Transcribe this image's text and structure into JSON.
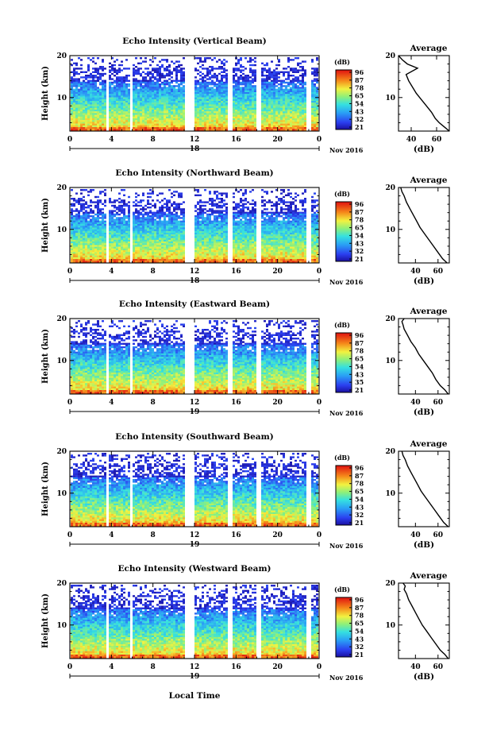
{
  "chart_data": [
    {
      "type": "heatmap",
      "title": "Echo Intensity (Vertical Beam)",
      "ylabel": "Height (km)",
      "x_ticks": [
        "0",
        "4",
        "8",
        "12",
        "16",
        "20",
        "0"
      ],
      "xlim": [
        0,
        24
      ],
      "y_ticks": [
        "20",
        "10"
      ],
      "ylim": [
        2,
        20
      ],
      "date_center": "18",
      "date_right": "Nov 2016",
      "colorbar": {
        "label": "(dB)",
        "ticks": [
          "96",
          "87",
          "78",
          "65",
          "54",
          "43",
          "32",
          "21"
        ]
      },
      "data_gaps_hours": [
        [
          3.3,
          3.7
        ],
        [
          5.7,
          6.0
        ],
        [
          11.0,
          11.8
        ],
        [
          15.0,
          15.6
        ],
        [
          17.9,
          18.2
        ],
        [
          22.6,
          23.1
        ]
      ],
      "profile": {
        "title": "Average",
        "xlabel": "(dB)",
        "x_ticks": [
          "40",
          "60"
        ],
        "xlim": [
          30,
          70
        ],
        "y_ticks": [
          "20",
          "10"
        ],
        "ylim": [
          2,
          20
        ],
        "x": [
          70,
          66,
          62,
          59,
          56,
          52,
          48,
          44,
          41,
          38,
          36,
          45,
          37,
          33,
          30
        ],
        "y": [
          2,
          3,
          4,
          5,
          6.5,
          8,
          9.5,
          11,
          12.5,
          14,
          15.5,
          17,
          18,
          19,
          20
        ]
      }
    },
    {
      "type": "heatmap",
      "title": "Echo Intensity (Northward Beam)",
      "ylabel": "Height (km)",
      "x_ticks": [
        "0",
        "4",
        "8",
        "12",
        "16",
        "20",
        "0"
      ],
      "xlim": [
        0,
        24
      ],
      "y_ticks": [
        "20",
        "10"
      ],
      "ylim": [
        2,
        20
      ],
      "date_center": "18",
      "date_right": "Nov 2016",
      "colorbar": {
        "label": "(dB)",
        "ticks": [
          "96",
          "87",
          "78",
          "65",
          "54",
          "43",
          "32",
          "21"
        ]
      },
      "data_gaps_hours": [
        [
          3.3,
          3.7
        ],
        [
          5.7,
          6.0
        ],
        [
          11.0,
          11.8
        ],
        [
          15.0,
          15.6
        ],
        [
          17.9,
          18.2
        ],
        [
          22.6,
          23.1
        ]
      ],
      "profile": {
        "title": "Average",
        "xlabel": "(dB)",
        "x_ticks": [
          "40",
          "60"
        ],
        "xlim": [
          25,
          70
        ],
        "y_ticks": [
          "20",
          "10"
        ],
        "ylim": [
          2,
          20
        ],
        "x": [
          68,
          64,
          60,
          56,
          52,
          48,
          44,
          41,
          38,
          35,
          32,
          30,
          28,
          27
        ],
        "y": [
          2,
          3,
          4.5,
          6,
          7.5,
          9,
          10.5,
          12,
          13.5,
          15,
          16.5,
          18,
          19,
          20
        ]
      }
    },
    {
      "type": "heatmap",
      "title": "Echo Intensity (Eastward Beam)",
      "ylabel": "Height (km)",
      "x_ticks": [
        "0",
        "4",
        "8",
        "12",
        "16",
        "20",
        "0"
      ],
      "xlim": [
        0,
        24
      ],
      "y_ticks": [
        "20",
        "10"
      ],
      "ylim": [
        2,
        20
      ],
      "date_center": "19",
      "date_right": "Nov 2016",
      "colorbar": {
        "label": "(dB)",
        "ticks": [
          "96",
          "87",
          "78",
          "65",
          "54",
          "43",
          "35",
          "21"
        ]
      },
      "data_gaps_hours": [
        [
          3.3,
          3.7
        ],
        [
          5.7,
          6.0
        ],
        [
          11.0,
          11.8
        ],
        [
          15.0,
          15.6
        ],
        [
          17.9,
          18.2
        ],
        [
          22.6,
          23.1
        ]
      ],
      "profile": {
        "title": "Average",
        "xlabel": "(dB)",
        "x_ticks": [
          "40",
          "60"
        ],
        "xlim": [
          25,
          70
        ],
        "y_ticks": [
          "20",
          "10"
        ],
        "ylim": [
          2,
          20
        ],
        "x": [
          69,
          66,
          62,
          58,
          55,
          51,
          47,
          43,
          40,
          36,
          33,
          30,
          29,
          28,
          30
        ],
        "y": [
          2,
          3,
          4,
          5.5,
          7,
          8.5,
          10,
          11.5,
          13,
          14.5,
          16,
          17.5,
          18.5,
          19.3,
          20
        ]
      }
    },
    {
      "type": "heatmap",
      "title": "Echo Intensity (Southward Beam)",
      "ylabel": "Height (km)",
      "x_ticks": [
        "0",
        "4",
        "8",
        "12",
        "16",
        "20",
        "0"
      ],
      "xlim": [
        0,
        24
      ],
      "y_ticks": [
        "20",
        "10"
      ],
      "ylim": [
        2,
        20
      ],
      "date_center": "19",
      "date_right": "Nov 2016",
      "colorbar": {
        "label": "(dB)",
        "ticks": [
          "96",
          "87",
          "78",
          "65",
          "54",
          "43",
          "32",
          "21"
        ]
      },
      "data_gaps_hours": [
        [
          3.3,
          3.7
        ],
        [
          5.7,
          6.0
        ],
        [
          11.0,
          11.8
        ],
        [
          15.0,
          15.6
        ],
        [
          17.9,
          18.2
        ],
        [
          22.6,
          23.1
        ]
      ],
      "profile": {
        "title": "Average",
        "xlabel": "(dB)",
        "x_ticks": [
          "40",
          "60"
        ],
        "xlim": [
          25,
          70
        ],
        "y_ticks": [
          "20",
          "10"
        ],
        "ylim": [
          2,
          20
        ],
        "x": [
          69,
          65,
          61,
          57,
          53,
          49,
          45,
          42,
          39,
          36,
          33,
          31,
          29,
          28
        ],
        "y": [
          2,
          3,
          4.5,
          6,
          7.5,
          9,
          10.5,
          12,
          13.5,
          15,
          16.5,
          18,
          19,
          20
        ]
      }
    },
    {
      "type": "heatmap",
      "title": "Echo Intensity (Westward Beam)",
      "ylabel": "Height (km)",
      "x_ticks": [
        "0",
        "4",
        "8",
        "12",
        "16",
        "20",
        "0"
      ],
      "xlim": [
        0,
        24
      ],
      "y_ticks": [
        "20",
        "10"
      ],
      "ylim": [
        2,
        20
      ],
      "date_center": "19",
      "date_right": "Nov 2016",
      "xlabel": "Local Time",
      "colorbar": {
        "label": "(dB)",
        "ticks": [
          "96",
          "87",
          "78",
          "65",
          "54",
          "43",
          "32",
          "21"
        ]
      },
      "data_gaps_hours": [
        [
          3.3,
          3.7
        ],
        [
          5.7,
          6.0
        ],
        [
          11.0,
          11.8
        ],
        [
          15.0,
          15.6
        ],
        [
          17.9,
          18.2
        ],
        [
          22.6,
          23.1
        ]
      ],
      "profile": {
        "title": "Average",
        "xlabel": "(dB)",
        "x_ticks": [
          "40",
          "60"
        ],
        "xlim": [
          25,
          70
        ],
        "y_ticks": [
          "20",
          "10"
        ],
        "ylim": [
          2,
          20
        ],
        "x": [
          69,
          66,
          62,
          58,
          54,
          50,
          46,
          43,
          40,
          37,
          34,
          32,
          30,
          31,
          29
        ],
        "y": [
          2,
          3,
          4,
          5.5,
          7,
          8.5,
          10,
          11.5,
          13,
          14.5,
          16,
          17.5,
          18.5,
          19.3,
          20
        ]
      }
    }
  ]
}
